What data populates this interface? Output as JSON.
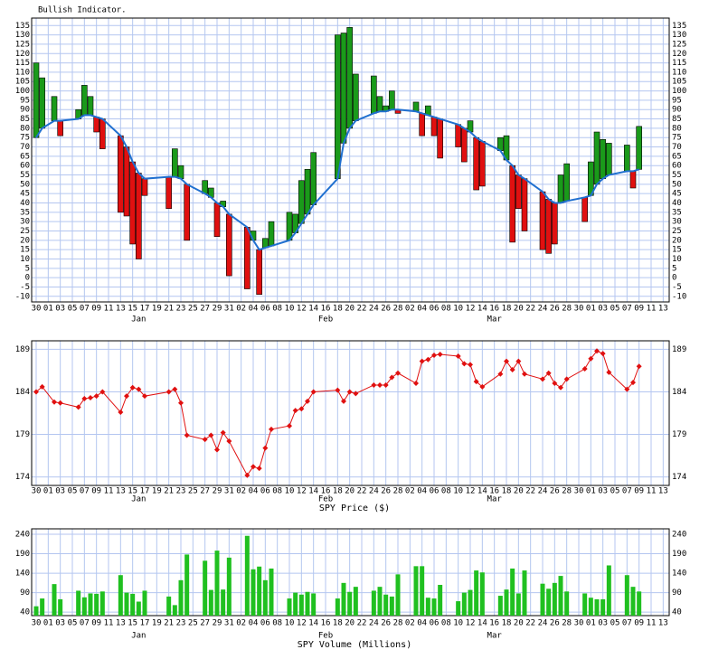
{
  "chart_data": [
    {
      "type": "bar",
      "title": "Bullish Indicator.",
      "x": [
        0,
        1,
        3,
        4,
        7,
        8,
        9,
        10,
        11,
        14,
        15,
        16,
        17,
        18,
        22,
        23,
        24,
        25,
        28,
        29,
        30,
        31,
        32,
        35,
        36,
        37,
        38,
        39,
        42,
        43,
        44,
        45,
        46,
        50,
        51,
        52,
        53,
        56,
        57,
        58,
        59,
        60,
        63,
        64,
        65,
        66,
        67,
        70,
        71,
        72,
        73,
        74,
        77,
        78,
        79,
        80,
        81,
        84,
        85,
        86,
        87,
        88,
        91,
        92,
        93,
        94,
        95,
        98,
        99,
        100
      ],
      "series": [
        {
          "type": "bar",
          "up_color": "#1a9a1a",
          "down_color": "#e01010",
          "values": [
            115,
            107,
            97,
            76,
            90,
            103,
            97,
            78,
            69,
            35,
            33,
            18,
            10,
            44,
            37,
            69,
            60,
            20,
            52,
            48,
            22,
            41,
            1,
            -6,
            25,
            -9,
            21,
            30,
            35,
            34,
            52,
            58,
            67,
            130,
            131,
            134,
            109,
            108,
            97,
            92,
            100,
            88,
            94,
            76,
            92,
            76,
            64,
            70,
            62,
            84,
            47,
            49,
            75,
            76,
            19,
            37,
            25,
            15,
            13,
            18,
            55,
            61,
            30,
            62,
            78,
            74,
            72,
            71,
            48,
            81
          ]
        },
        {
          "type": "line",
          "color": "#2070d0",
          "values": [
            75,
            80,
            84,
            84,
            85,
            87,
            87,
            86,
            85,
            76,
            70,
            62,
            56,
            53,
            54,
            54,
            53,
            50,
            45,
            43,
            40,
            38,
            34,
            27,
            20,
            15,
            16,
            17,
            20,
            24,
            29,
            34,
            39,
            53,
            72,
            80,
            84,
            88,
            89,
            89,
            90,
            90,
            89,
            88,
            87,
            86,
            85,
            82,
            80,
            78,
            75,
            73,
            68,
            63,
            60,
            55,
            53,
            46,
            42,
            40,
            40,
            41,
            43,
            44,
            50,
            53,
            55,
            57,
            57,
            58
          ]
        }
      ],
      "xlim": [
        -0.75,
        105
      ],
      "xticks": [
        {
          "value": 0,
          "label": "30"
        },
        {
          "value": 2,
          "label": "01"
        },
        {
          "value": 4,
          "label": "03"
        },
        {
          "value": 6,
          "label": "05"
        },
        {
          "value": 8,
          "label": "07"
        },
        {
          "value": 10,
          "label": "09"
        },
        {
          "value": 12,
          "label": "11"
        },
        {
          "value": 14,
          "label": "13"
        },
        {
          "value": 16,
          "label": "15"
        },
        {
          "value": 18,
          "label": "17"
        },
        {
          "value": 20,
          "label": "19"
        },
        {
          "value": 22,
          "label": "21"
        },
        {
          "value": 24,
          "label": "23"
        },
        {
          "value": 26,
          "label": "25"
        },
        {
          "value": 28,
          "label": "27"
        },
        {
          "value": 30,
          "label": "29"
        },
        {
          "value": 32,
          "label": "31"
        },
        {
          "value": 34,
          "label": "02"
        },
        {
          "value": 36,
          "label": "04"
        },
        {
          "value": 38,
          "label": "06"
        },
        {
          "value": 40,
          "label": "08"
        },
        {
          "value": 42,
          "label": "10"
        },
        {
          "value": 44,
          "label": "12"
        },
        {
          "value": 46,
          "label": "14"
        },
        {
          "value": 48,
          "label": "16"
        },
        {
          "value": 50,
          "label": "18"
        },
        {
          "value": 52,
          "label": "20"
        },
        {
          "value": 54,
          "label": "22"
        },
        {
          "value": 56,
          "label": "24"
        },
        {
          "value": 58,
          "label": "26"
        },
        {
          "value": 60,
          "label": "28"
        },
        {
          "value": 62,
          "label": "02"
        },
        {
          "value": 64,
          "label": "04"
        },
        {
          "value": 66,
          "label": "06"
        },
        {
          "value": 68,
          "label": "08"
        },
        {
          "value": 70,
          "label": "10"
        },
        {
          "value": 72,
          "label": "12"
        },
        {
          "value": 74,
          "label": "14"
        },
        {
          "value": 76,
          "label": "16"
        },
        {
          "value": 78,
          "label": "18"
        },
        {
          "value": 80,
          "label": "20"
        },
        {
          "value": 82,
          "label": "22"
        },
        {
          "value": 84,
          "label": "24"
        },
        {
          "value": 86,
          "label": "26"
        },
        {
          "value": 88,
          "label": "28"
        },
        {
          "value": 90,
          "label": "30"
        },
        {
          "value": 92,
          "label": "01"
        },
        {
          "value": 94,
          "label": "03"
        },
        {
          "value": 96,
          "label": "05"
        },
        {
          "value": 98,
          "label": "07"
        },
        {
          "value": 100,
          "label": "09"
        },
        {
          "value": 102,
          "label": "11"
        },
        {
          "value": 104,
          "label": "13"
        }
      ],
      "month_labels": [
        {
          "value": 17,
          "label": "Jan"
        },
        {
          "value": 48,
          "label": "Feb"
        },
        {
          "value": 76,
          "label": "Mar"
        }
      ],
      "ylim": [
        -13,
        139
      ],
      "yticks": [
        -10,
        -5,
        0,
        5,
        10,
        15,
        20,
        25,
        30,
        35,
        40,
        45,
        50,
        55,
        60,
        65,
        70,
        75,
        80,
        85,
        90,
        95,
        100,
        105,
        110,
        115,
        120,
        125,
        130,
        135
      ],
      "grid": true
    },
    {
      "type": "line",
      "title": "SPY Price ($)",
      "color": "#e01010",
      "x": [
        0,
        1,
        3,
        4,
        7,
        8,
        9,
        10,
        11,
        14,
        15,
        16,
        17,
        18,
        22,
        23,
        24,
        25,
        28,
        29,
        30,
        31,
        32,
        35,
        36,
        37,
        38,
        39,
        42,
        43,
        44,
        45,
        46,
        50,
        51,
        52,
        53,
        56,
        57,
        58,
        59,
        60,
        63,
        64,
        65,
        66,
        67,
        70,
        71,
        72,
        73,
        74,
        77,
        78,
        79,
        80,
        81,
        84,
        85,
        86,
        87,
        88,
        91,
        92,
        93,
        94,
        95,
        98,
        99,
        100
      ],
      "values": [
        184,
        184.6,
        182.8,
        182.7,
        182.2,
        183.2,
        183.3,
        183.5,
        184,
        181.6,
        183.5,
        184.5,
        184.3,
        183.5,
        184,
        184.3,
        182.7,
        178.9,
        178.4,
        178.9,
        177.2,
        179.2,
        178.2,
        174.2,
        175.2,
        175,
        177.4,
        179.6,
        180,
        181.8,
        182,
        182.9,
        184,
        184.2,
        182.9,
        184,
        183.8,
        184.8,
        184.8,
        184.8,
        185.7,
        186.2,
        185,
        187.6,
        187.8,
        188.3,
        188.4,
        188.2,
        187.3,
        187.2,
        185.2,
        184.6,
        186.1,
        187.6,
        186.6,
        187.6,
        186.1,
        185.5,
        186.2,
        185,
        184.5,
        185.5,
        186.7,
        187.9,
        188.8,
        188.5,
        186.3,
        184.3,
        185.1,
        187
      ],
      "xlim": [
        -0.75,
        105
      ],
      "xticks": [
        {
          "value": 0,
          "label": "30"
        },
        {
          "value": 2,
          "label": "01"
        },
        {
          "value": 4,
          "label": "03"
        },
        {
          "value": 6,
          "label": "05"
        },
        {
          "value": 8,
          "label": "07"
        },
        {
          "value": 10,
          "label": "09"
        },
        {
          "value": 12,
          "label": "11"
        },
        {
          "value": 14,
          "label": "13"
        },
        {
          "value": 16,
          "label": "15"
        },
        {
          "value": 18,
          "label": "17"
        },
        {
          "value": 20,
          "label": "19"
        },
        {
          "value": 22,
          "label": "21"
        },
        {
          "value": 24,
          "label": "23"
        },
        {
          "value": 26,
          "label": "25"
        },
        {
          "value": 28,
          "label": "27"
        },
        {
          "value": 30,
          "label": "29"
        },
        {
          "value": 32,
          "label": "31"
        },
        {
          "value": 34,
          "label": "02"
        },
        {
          "value": 36,
          "label": "04"
        },
        {
          "value": 38,
          "label": "06"
        },
        {
          "value": 40,
          "label": "08"
        },
        {
          "value": 42,
          "label": "10"
        },
        {
          "value": 44,
          "label": "12"
        },
        {
          "value": 46,
          "label": "14"
        },
        {
          "value": 48,
          "label": "16"
        },
        {
          "value": 50,
          "label": "18"
        },
        {
          "value": 52,
          "label": "20"
        },
        {
          "value": 54,
          "label": "22"
        },
        {
          "value": 56,
          "label": "24"
        },
        {
          "value": 58,
          "label": "26"
        },
        {
          "value": 60,
          "label": "28"
        },
        {
          "value": 62,
          "label": "02"
        },
        {
          "value": 64,
          "label": "04"
        },
        {
          "value": 66,
          "label": "06"
        },
        {
          "value": 68,
          "label": "08"
        },
        {
          "value": 70,
          "label": "10"
        },
        {
          "value": 72,
          "label": "12"
        },
        {
          "value": 74,
          "label": "14"
        },
        {
          "value": 76,
          "label": "16"
        },
        {
          "value": 78,
          "label": "18"
        },
        {
          "value": 80,
          "label": "20"
        },
        {
          "value": 82,
          "label": "22"
        },
        {
          "value": 84,
          "label": "24"
        },
        {
          "value": 86,
          "label": "26"
        },
        {
          "value": 88,
          "label": "28"
        },
        {
          "value": 90,
          "label": "30"
        },
        {
          "value": 92,
          "label": "01"
        },
        {
          "value": 94,
          "label": "03"
        },
        {
          "value": 96,
          "label": "05"
        },
        {
          "value": 98,
          "label": "07"
        },
        {
          "value": 100,
          "label": "09"
        },
        {
          "value": 102,
          "label": "11"
        },
        {
          "value": 104,
          "label": "13"
        }
      ],
      "month_labels": [
        {
          "value": 17,
          "label": "Jan"
        },
        {
          "value": 48,
          "label": "Feb"
        },
        {
          "value": 76,
          "label": "Mar"
        }
      ],
      "ylim": [
        173,
        190
      ],
      "yticks": [
        174,
        179,
        184,
        189
      ],
      "grid": true
    },
    {
      "type": "bar",
      "title": "SPY Volume (Millions)",
      "color": "#20c020",
      "x": [
        0,
        1,
        3,
        4,
        7,
        8,
        9,
        10,
        11,
        14,
        15,
        16,
        17,
        18,
        22,
        23,
        24,
        25,
        28,
        29,
        30,
        31,
        32,
        35,
        36,
        37,
        38,
        39,
        42,
        43,
        44,
        45,
        46,
        50,
        51,
        52,
        53,
        56,
        57,
        58,
        59,
        60,
        63,
        64,
        65,
        66,
        67,
        70,
        71,
        72,
        73,
        74,
        77,
        78,
        79,
        80,
        81,
        84,
        85,
        86,
        87,
        88,
        91,
        92,
        93,
        94,
        95,
        98,
        99,
        100
      ],
      "values": [
        55,
        75,
        112,
        73,
        95,
        78,
        88,
        87,
        93,
        135,
        90,
        87,
        67,
        95,
        80,
        58,
        122,
        188,
        172,
        97,
        198,
        98,
        180,
        236,
        150,
        157,
        122,
        152,
        75,
        90,
        85,
        92,
        88,
        75,
        115,
        92,
        105,
        95,
        105,
        85,
        80,
        137,
        158,
        158,
        77,
        75,
        110,
        68,
        90,
        97,
        147,
        142,
        82,
        98,
        152,
        88,
        147,
        113,
        100,
        115,
        133,
        93,
        88,
        77,
        73,
        73,
        160,
        135,
        105,
        93
      ],
      "xlim": [
        -0.75,
        105
      ],
      "xticks": [
        {
          "value": 0,
          "label": "30"
        },
        {
          "value": 2,
          "label": "01"
        },
        {
          "value": 4,
          "label": "03"
        },
        {
          "value": 6,
          "label": "05"
        },
        {
          "value": 8,
          "label": "07"
        },
        {
          "value": 10,
          "label": "09"
        },
        {
          "value": 12,
          "label": "11"
        },
        {
          "value": 14,
          "label": "13"
        },
        {
          "value": 16,
          "label": "15"
        },
        {
          "value": 18,
          "label": "17"
        },
        {
          "value": 20,
          "label": "19"
        },
        {
          "value": 22,
          "label": "21"
        },
        {
          "value": 24,
          "label": "23"
        },
        {
          "value": 26,
          "label": "25"
        },
        {
          "value": 28,
          "label": "27"
        },
        {
          "value": 30,
          "label": "29"
        },
        {
          "value": 32,
          "label": "31"
        },
        {
          "value": 34,
          "label": "02"
        },
        {
          "value": 36,
          "label": "04"
        },
        {
          "value": 38,
          "label": "06"
        },
        {
          "value": 40,
          "label": "08"
        },
        {
          "value": 42,
          "label": "10"
        },
        {
          "value": 44,
          "label": "12"
        },
        {
          "value": 46,
          "label": "14"
        },
        {
          "value": 48,
          "label": "16"
        },
        {
          "value": 50,
          "label": "18"
        },
        {
          "value": 52,
          "label": "20"
        },
        {
          "value": 54,
          "label": "22"
        },
        {
          "value": 56,
          "label": "24"
        },
        {
          "value": 58,
          "label": "26"
        },
        {
          "value": 60,
          "label": "28"
        },
        {
          "value": 62,
          "label": "02"
        },
        {
          "value": 64,
          "label": "04"
        },
        {
          "value": 66,
          "label": "06"
        },
        {
          "value": 68,
          "label": "08"
        },
        {
          "value": 70,
          "label": "10"
        },
        {
          "value": 72,
          "label": "12"
        },
        {
          "value": 74,
          "label": "14"
        },
        {
          "value": 76,
          "label": "16"
        },
        {
          "value": 78,
          "label": "18"
        },
        {
          "value": 80,
          "label": "20"
        },
        {
          "value": 82,
          "label": "22"
        },
        {
          "value": 84,
          "label": "24"
        },
        {
          "value": 86,
          "label": "26"
        },
        {
          "value": 88,
          "label": "28"
        },
        {
          "value": 90,
          "label": "30"
        },
        {
          "value": 92,
          "label": "01"
        },
        {
          "value": 94,
          "label": "03"
        },
        {
          "value": 96,
          "label": "05"
        },
        {
          "value": 98,
          "label": "07"
        },
        {
          "value": 100,
          "label": "09"
        },
        {
          "value": 102,
          "label": "11"
        },
        {
          "value": 104,
          "label": "13"
        }
      ],
      "month_labels": [
        {
          "value": 17,
          "label": "Jan"
        },
        {
          "value": 48,
          "label": "Feb"
        },
        {
          "value": 76,
          "label": "Mar"
        }
      ],
      "ylim": [
        31,
        254
      ],
      "yticks": [
        40,
        90,
        140,
        190,
        240
      ],
      "grid": true
    }
  ]
}
